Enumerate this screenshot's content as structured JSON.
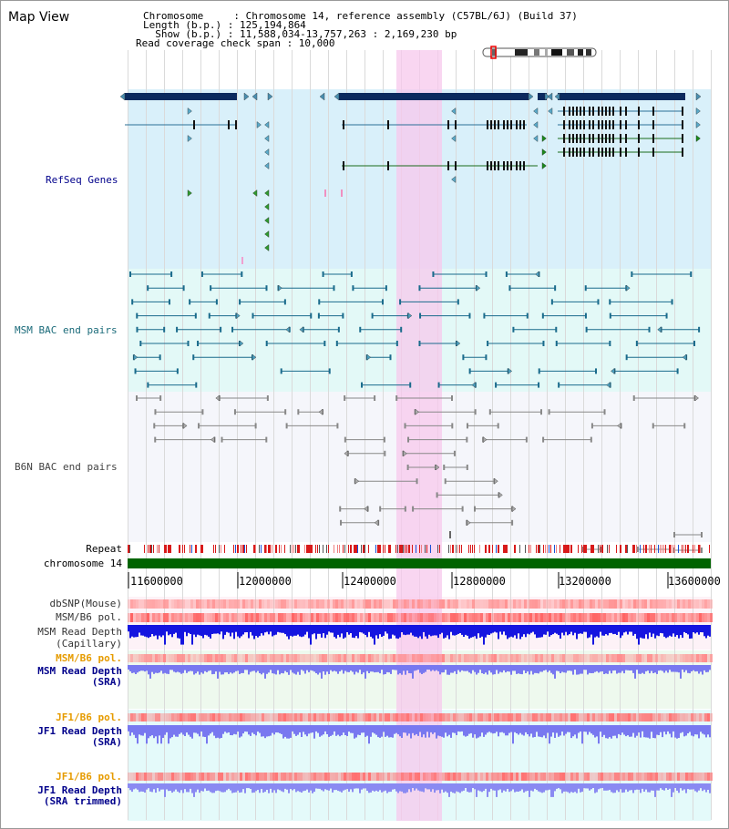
{
  "page": {
    "title": "Map View",
    "info": [
      "Chromosome     : Chromosome 14, reference assembly (C57BL/6J) (Build 37)",
      "Length (b.p.) : 125,194,864",
      "  Show (b.p.) : 11,588,034-13,757,263 : 2,169,230 bp",
      "Read coverage check span : 10,000"
    ]
  },
  "colors": {
    "highlight": "#f7c8ec",
    "refseq_bg": "#d9f0fa",
    "msm_bg": "#e3f9f7",
    "b6n_bg": "#f5f6fb",
    "gene_dark": "#0b2a5e",
    "msm_pair": "#1a6b8c",
    "b6n_pair": "#888888",
    "chrom_bar": "#006400",
    "depth_capillary": "#1515e0",
    "depth_sra": "#7878f0",
    "snp_track": "#ff9090",
    "label_navy": "#00008b",
    "label_orange": "#e69b00",
    "label_teal": "#1b6b7a"
  },
  "tracks": {
    "refseq_label": "RefSeq Genes",
    "msm_bac_label": "MSM BAC end pairs",
    "b6n_bac_label": "B6N BAC end pairs",
    "repeat_label": "Repeat",
    "chromosome_label": "chromosome 14",
    "dbsnp_label": "dbSNP(Mouse)",
    "msm_pol_label": "MSM/B6 pol.",
    "msm_depth_cap_label_1": "MSM Read Depth",
    "msm_depth_cap_label_2": "(Capillary)",
    "msm_pol_sra_label": "MSM/B6 pol.",
    "msm_depth_sra_label_1": "MSM Read Depth",
    "msm_depth_sra_label_2": "(SRA)",
    "jf1_pol_label": "JF1/B6 pol.",
    "jf1_depth_label_1": "JF1 Read Depth",
    "jf1_depth_label_2": "(SRA)",
    "jf1_pol_trim_label": "JF1/B6 pol.",
    "jf1_depth_trim_label_1": "JF1 Read Depth",
    "jf1_depth_trim_label_2": "(SRA trimmed)"
  },
  "axis": {
    "ticks": [
      "11600000",
      "12000000",
      "12400000",
      "12800000",
      "13200000",
      "13600000"
    ]
  }
}
